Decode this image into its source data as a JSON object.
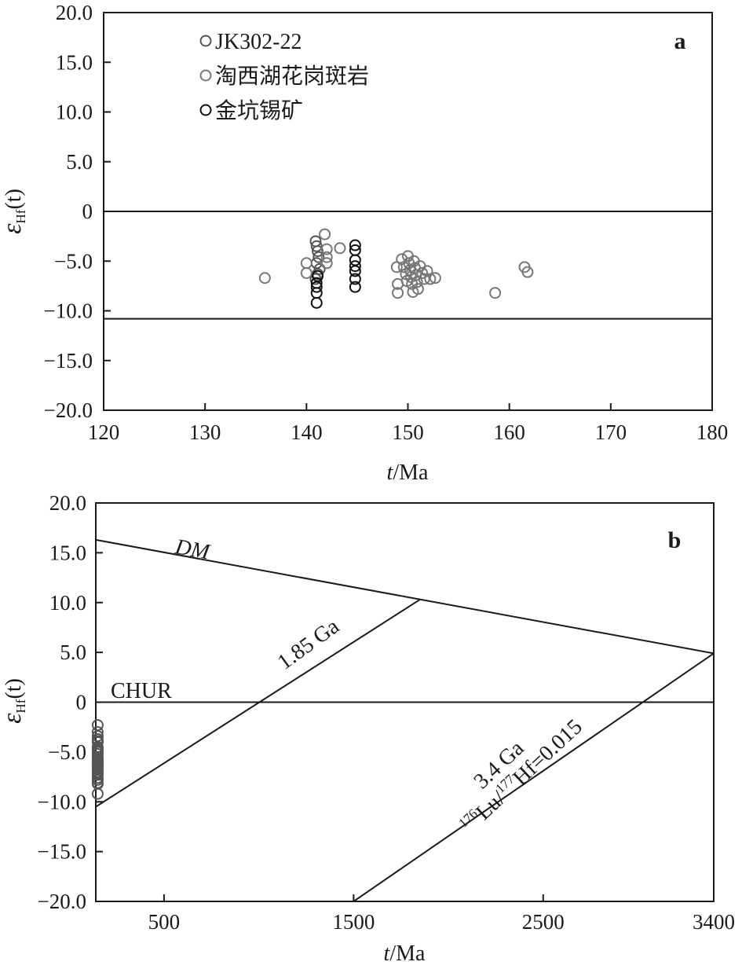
{
  "chart_data": [
    {
      "type": "scatter",
      "panel_label": "a",
      "xlabel_italic": "t",
      "xlabel_rest": "/Ma",
      "ylabel_symbol": "ε",
      "ylabel_sub": "Hf",
      "ylabel_arg": "(t)",
      "xlim": [
        120,
        180
      ],
      "ylim": [
        -20,
        20
      ],
      "x_ticks": [
        120,
        130,
        140,
        150,
        160,
        170,
        180
      ],
      "x_tick_labels": [
        "120",
        "130",
        "140",
        "150",
        "160",
        "170",
        "180"
      ],
      "y_ticks": [
        20,
        15,
        10,
        5,
        0,
        -5,
        -10,
        -15,
        -20
      ],
      "y_tick_labels": [
        "20.0",
        "15.0",
        "10.0",
        "5.0",
        "0",
        "−5.0",
        "−10.0",
        "−15.0",
        "−20.0"
      ],
      "grid": false,
      "legend_position": "top-left",
      "reference_lines": [
        {
          "y": 0
        },
        {
          "y": -10.8
        }
      ],
      "series": [
        {
          "name": "JK302-22",
          "color": "#555555",
          "marker": "open-circle",
          "points": [
            [
              140.9,
              -3.0
            ],
            [
              141.0,
              -3.5
            ],
            [
              141.1,
              -4.0
            ],
            [
              141.2,
              -4.6
            ],
            [
              141.0,
              -5.2
            ],
            [
              141.3,
              -5.8
            ],
            [
              141.1,
              -6.3
            ],
            [
              140.9,
              -6.8
            ]
          ]
        },
        {
          "name": "淘西湖花岗斑岩",
          "color": "#777777",
          "marker": "open-circle",
          "points": [
            [
              135.9,
              -6.7
            ],
            [
              140.0,
              -5.2
            ],
            [
              140.0,
              -6.2
            ],
            [
              141.8,
              -2.3
            ],
            [
              142.0,
              -3.8
            ],
            [
              142.0,
              -4.6
            ],
            [
              142.0,
              -5.2
            ],
            [
              143.3,
              -3.7
            ],
            [
              148.9,
              -5.6
            ],
            [
              149.0,
              -7.3
            ],
            [
              149.0,
              -8.2
            ],
            [
              149.4,
              -4.8
            ],
            [
              149.6,
              -5.6
            ],
            [
              149.8,
              -6.3
            ],
            [
              149.9,
              -7.0
            ],
            [
              150.0,
              -4.5
            ],
            [
              150.1,
              -5.2
            ],
            [
              150.2,
              -5.9
            ],
            [
              150.3,
              -6.6
            ],
            [
              150.4,
              -7.3
            ],
            [
              150.5,
              -8.1
            ],
            [
              150.6,
              -5.0
            ],
            [
              150.7,
              -5.7
            ],
            [
              150.8,
              -6.4
            ],
            [
              150.9,
              -7.1
            ],
            [
              151.0,
              -7.8
            ],
            [
              151.2,
              -5.5
            ],
            [
              151.4,
              -6.2
            ],
            [
              151.6,
              -6.8
            ],
            [
              151.9,
              -6.0
            ],
            [
              152.2,
              -6.8
            ],
            [
              152.7,
              -6.7
            ],
            [
              158.6,
              -8.2
            ],
            [
              161.5,
              -5.6
            ],
            [
              161.8,
              -6.1
            ]
          ]
        },
        {
          "name": "金坑锡矿",
          "color": "#111111",
          "marker": "open-circle",
          "points": [
            [
              141.0,
              -7.2
            ],
            [
              141.0,
              -7.6
            ],
            [
              141.0,
              -8.2
            ],
            [
              141.0,
              -9.2
            ],
            [
              141.1,
              -6.5
            ],
            [
              144.8,
              -3.4
            ],
            [
              144.8,
              -3.9
            ],
            [
              144.8,
              -4.9
            ],
            [
              144.8,
              -5.5
            ],
            [
              144.8,
              -6.0
            ],
            [
              144.8,
              -6.8
            ],
            [
              144.8,
              -7.6
            ]
          ]
        }
      ]
    },
    {
      "type": "line",
      "panel_label": "b",
      "xlabel_italic": "t",
      "xlabel_rest": "/Ma",
      "ylabel_symbol": "ε",
      "ylabel_sub": "Hf",
      "ylabel_arg": "(t)",
      "xlim": [
        140,
        3400
      ],
      "ylim": [
        -20,
        20
      ],
      "x_ticks": [
        500,
        1500,
        2500,
        3400
      ],
      "x_tick_labels": [
        "500",
        "1500",
        "2500",
        "3400"
      ],
      "y_ticks": [
        20,
        15,
        10,
        5,
        0,
        -5,
        -10,
        -15,
        -20
      ],
      "y_tick_labels": [
        "20.0",
        "15.0",
        "10.0",
        "5.0",
        "0",
        "−5.0",
        "−10.0",
        "−15.0",
        "−20.0"
      ],
      "grid": false,
      "lines": [
        {
          "label": "DM",
          "label_italic": true,
          "points": [
            [
              140,
              16.3
            ],
            [
              3400,
              4.9
            ]
          ]
        },
        {
          "label": "CHUR",
          "label_italic": false,
          "points": [
            [
              140,
              0
            ],
            [
              3400,
              0
            ]
          ]
        },
        {
          "label": "1.85 Ga",
          "label_italic": false,
          "points": [
            [
              140,
              -10.5
            ],
            [
              1850,
              10.3
            ]
          ]
        },
        {
          "label": "3.4 Ga",
          "label_italic": false,
          "points": [
            [
              1500,
              -20
            ],
            [
              3400,
              4.9
            ]
          ]
        }
      ],
      "annotation": {
        "sup1": "176",
        "part1": "Lu/",
        "sup2": "177",
        "part2": "Hf=0.015"
      },
      "points_x": 150,
      "points_y": [
        -2.3,
        -3.0,
        -3.4,
        -3.7,
        -3.9,
        -4.0,
        -4.5,
        -4.6,
        -4.8,
        -4.9,
        -5.0,
        -5.2,
        -5.5,
        -5.6,
        -5.7,
        -5.9,
        -6.0,
        -6.1,
        -6.2,
        -6.3,
        -6.4,
        -6.5,
        -6.6,
        -6.7,
        -6.8,
        -7.0,
        -7.1,
        -7.2,
        -7.3,
        -7.6,
        -7.8,
        -8.1,
        -8.2,
        -9.2
      ],
      "points_color": "#555555"
    }
  ]
}
